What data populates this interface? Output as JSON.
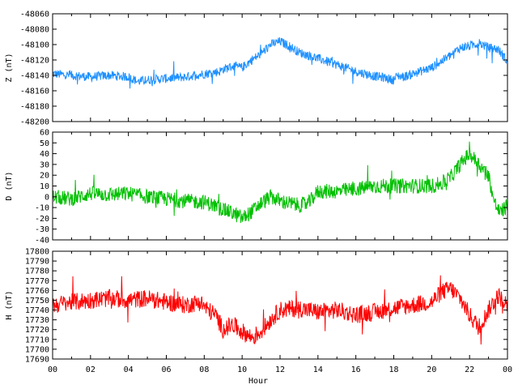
{
  "chart_data": [
    {
      "type": "line",
      "panel": "z",
      "ylabel": "Z (nT)",
      "color": "#1e90ff",
      "ylim": [
        -48200,
        -48060
      ],
      "yticks": [
        -48200,
        -48180,
        -48160,
        -48140,
        -48120,
        -48100,
        -48080,
        -48060
      ],
      "xlim": [
        0,
        24
      ],
      "noise": 6,
      "series": [
        {
          "x": [
            0,
            1,
            2,
            3,
            4,
            4.5,
            5,
            6,
            7,
            8,
            8.8,
            9,
            9.5,
            10,
            10.5,
            11,
            11.5,
            12,
            12.5,
            13,
            14,
            15,
            16,
            17,
            17.5,
            18,
            18.2,
            18.5,
            19,
            20,
            20.5,
            21,
            21.5,
            22,
            22.5,
            23,
            23.5,
            24
          ],
          "values": [
            -48138,
            -48140,
            -48142,
            -48140,
            -48142,
            -48148,
            -48146,
            -48144,
            -48142,
            -48138,
            -48135,
            -48132,
            -48128,
            -48130,
            -48120,
            -48112,
            -48100,
            -48096,
            -48102,
            -48110,
            -48118,
            -48126,
            -48135,
            -48141,
            -48143,
            -48146,
            -48140,
            -48142,
            -48138,
            -48130,
            -48122,
            -48114,
            -48104,
            -48102,
            -48098,
            -48104,
            -48106,
            -48122
          ]
        }
      ]
    },
    {
      "type": "line",
      "panel": "d",
      "ylabel": "D (nT)",
      "color": "#00c000",
      "ylim": [
        -40,
        60
      ],
      "yticks": [
        -40,
        -30,
        -20,
        -10,
        0,
        10,
        20,
        30,
        40,
        50,
        60
      ],
      "xlim": [
        0,
        24
      ],
      "noise": 7,
      "series": [
        {
          "x": [
            0,
            1,
            2,
            3,
            4,
            5,
            6,
            7,
            8,
            8.5,
            9,
            9.5,
            10,
            10.5,
            11,
            11.5,
            12,
            13,
            13.5,
            14,
            15,
            16,
            17,
            18,
            19,
            20,
            20.5,
            21,
            21.5,
            22,
            22.5,
            23,
            23.3,
            23.6,
            24
          ],
          "values": [
            0,
            -2,
            3,
            2,
            3,
            0,
            -2,
            -4,
            -5,
            -8,
            -12,
            -15,
            -20,
            -14,
            -6,
            0,
            -4,
            -8,
            -6,
            5,
            5,
            7,
            10,
            10,
            10,
            10,
            12,
            18,
            30,
            40,
            30,
            20,
            -5,
            -15,
            -8
          ]
        }
      ]
    },
    {
      "type": "line",
      "panel": "h",
      "ylabel": "H (nT)",
      "xlabel": "Hour",
      "color": "#ff0000",
      "ylim": [
        17690,
        17800
      ],
      "yticks": [
        17690,
        17700,
        17710,
        17720,
        17730,
        17740,
        17750,
        17760,
        17770,
        17780,
        17790,
        17800
      ],
      "xlim": [
        0,
        24
      ],
      "xtick_labels": [
        "00",
        "02",
        "04",
        "06",
        "08",
        "10",
        "12",
        "14",
        "16",
        "18",
        "20",
        "22",
        "00"
      ],
      "noise": 9,
      "series": [
        {
          "x": [
            0,
            1,
            2,
            3,
            4,
            5,
            6,
            7,
            7.8,
            8.2,
            8.6,
            9,
            9.5,
            10,
            10.5,
            11,
            11.5,
            12,
            13,
            14,
            15,
            16,
            17,
            18,
            19,
            20,
            20.5,
            21,
            21.5,
            22,
            22.5,
            23,
            23.5,
            24
          ],
          "values": [
            17745,
            17748,
            17750,
            17752,
            17750,
            17752,
            17748,
            17745,
            17748,
            17740,
            17735,
            17720,
            17725,
            17718,
            17712,
            17718,
            17730,
            17740,
            17742,
            17738,
            17740,
            17735,
            17738,
            17742,
            17745,
            17748,
            17758,
            17762,
            17752,
            17735,
            17722,
            17740,
            17755,
            17745
          ]
        }
      ]
    }
  ]
}
